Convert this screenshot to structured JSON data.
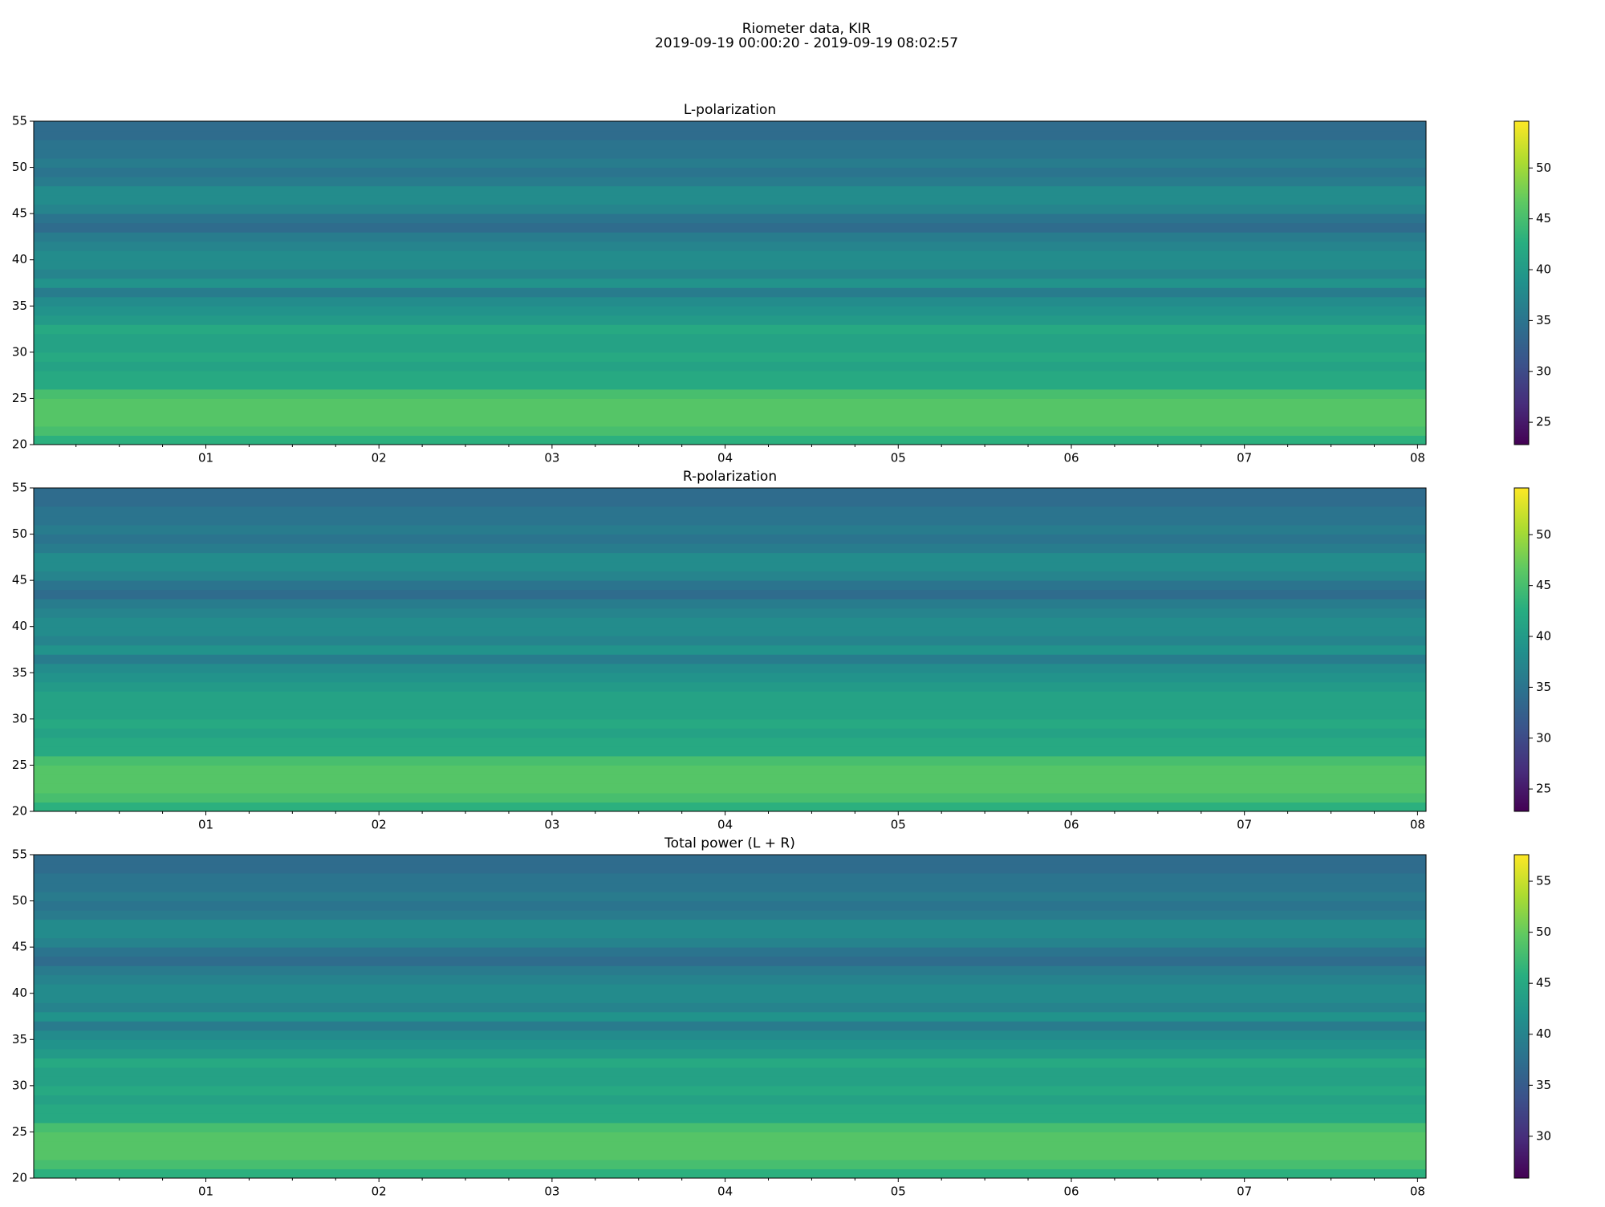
{
  "title_lines": [
    "Riometer data, KIR",
    "2019-09-19 00:00:20 - 2019-09-19 08:02:57"
  ],
  "chart_data": [
    {
      "type": "heatmap",
      "title": "L-polarization",
      "colormap": "viridis",
      "xlim": [
        0.0056,
        8.0492
      ],
      "xticks": [
        {
          "value": 1,
          "label": "01"
        },
        {
          "value": 2,
          "label": "02"
        },
        {
          "value": 3,
          "label": "03"
        },
        {
          "value": 4,
          "label": "04"
        },
        {
          "value": 5,
          "label": "05"
        },
        {
          "value": 6,
          "label": "06"
        },
        {
          "value": 7,
          "label": "07"
        },
        {
          "value": 8,
          "label": "08"
        }
      ],
      "xminorticks": [
        0.25,
        0.5,
        0.75,
        1.25,
        1.5,
        1.75,
        2.25,
        2.5,
        2.75,
        3.25,
        3.5,
        3.75,
        4.25,
        4.5,
        4.75,
        5.25,
        5.5,
        5.75,
        6.25,
        6.5,
        6.75,
        7.25,
        7.5,
        7.75
      ],
      "ylim": [
        20,
        55
      ],
      "yticks": [
        20,
        25,
        30,
        35,
        40,
        45,
        50,
        55
      ],
      "ybins": [
        20,
        21,
        22,
        23,
        24,
        25,
        26,
        27,
        28,
        29,
        30,
        31,
        32,
        33,
        34,
        35,
        36,
        37,
        38,
        39,
        40,
        41,
        42,
        43,
        44,
        45,
        46,
        47,
        48,
        49,
        50,
        51,
        52,
        53,
        54,
        55
      ],
      "values": [
        43,
        45,
        46,
        46,
        46,
        45,
        42,
        42,
        41,
        42,
        41,
        41,
        42,
        40,
        39,
        38,
        36,
        39,
        37,
        38,
        38,
        37,
        36,
        34,
        35,
        37,
        38,
        38,
        36,
        35,
        36,
        35,
        35,
        34,
        34
      ],
      "clim": [
        22.8,
        54.6
      ],
      "cbticks": [
        25,
        30,
        35,
        40,
        45,
        50
      ]
    },
    {
      "type": "heatmap",
      "title": "R-polarization",
      "colormap": "viridis",
      "xlim": [
        0.0056,
        8.0492
      ],
      "xticks": [
        {
          "value": 1,
          "label": "01"
        },
        {
          "value": 2,
          "label": "02"
        },
        {
          "value": 3,
          "label": "03"
        },
        {
          "value": 4,
          "label": "04"
        },
        {
          "value": 5,
          "label": "05"
        },
        {
          "value": 6,
          "label": "06"
        },
        {
          "value": 7,
          "label": "07"
        },
        {
          "value": 8,
          "label": "08"
        }
      ],
      "xminorticks": [
        0.25,
        0.5,
        0.75,
        1.25,
        1.5,
        1.75,
        2.25,
        2.5,
        2.75,
        3.25,
        3.5,
        3.75,
        4.25,
        4.5,
        4.75,
        5.25,
        5.5,
        5.75,
        6.25,
        6.5,
        6.75,
        7.25,
        7.5,
        7.75
      ],
      "ylim": [
        20,
        55
      ],
      "yticks": [
        20,
        25,
        30,
        35,
        40,
        45,
        50,
        55
      ],
      "ybins": [
        20,
        21,
        22,
        23,
        24,
        25,
        26,
        27,
        28,
        29,
        30,
        31,
        32,
        33,
        34,
        35,
        36,
        37,
        38,
        39,
        40,
        41,
        42,
        43,
        44,
        45,
        46,
        47,
        48,
        49,
        50,
        51,
        52,
        53,
        54,
        55
      ],
      "values": [
        43,
        45,
        46,
        46,
        46,
        45,
        42,
        42,
        41,
        42,
        41,
        41,
        41,
        40,
        39,
        38,
        36,
        39,
        37,
        38,
        38,
        37,
        36,
        34,
        35,
        37,
        38,
        38,
        36,
        35,
        36,
        35,
        35,
        34,
        34
      ],
      "clim": [
        22.8,
        54.6
      ],
      "cbticks": [
        25,
        30,
        35,
        40,
        45,
        50
      ]
    },
    {
      "type": "heatmap",
      "title": "Total power (L + R)",
      "colormap": "viridis",
      "xlim": [
        0.0056,
        8.0492
      ],
      "xticks": [
        {
          "value": 1,
          "label": "01"
        },
        {
          "value": 2,
          "label": "02"
        },
        {
          "value": 3,
          "label": "03"
        },
        {
          "value": 4,
          "label": "04"
        },
        {
          "value": 5,
          "label": "05"
        },
        {
          "value": 6,
          "label": "06"
        },
        {
          "value": 7,
          "label": "07"
        },
        {
          "value": 8,
          "label": "08"
        }
      ],
      "xminorticks": [
        0.25,
        0.5,
        0.75,
        1.25,
        1.5,
        1.75,
        2.25,
        2.5,
        2.75,
        3.25,
        3.5,
        3.75,
        4.25,
        4.5,
        4.75,
        5.25,
        5.5,
        5.75,
        6.25,
        6.5,
        6.75,
        7.25,
        7.5,
        7.75
      ],
      "ylim": [
        20,
        55
      ],
      "yticks": [
        20,
        25,
        30,
        35,
        40,
        45,
        50,
        55
      ],
      "ybins": [
        20,
        21,
        22,
        23,
        24,
        25,
        26,
        27,
        28,
        29,
        30,
        31,
        32,
        33,
        34,
        35,
        36,
        37,
        38,
        39,
        40,
        41,
        42,
        43,
        44,
        45,
        46,
        47,
        48,
        49,
        50,
        51,
        52,
        53,
        54,
        55
      ],
      "values": [
        46,
        48,
        49,
        49,
        49,
        48,
        45,
        45,
        44,
        45,
        44,
        44,
        45,
        43,
        42,
        41,
        39,
        42,
        40,
        41,
        41,
        40,
        39,
        37,
        38,
        40,
        41,
        41,
        39,
        38,
        39,
        38,
        38,
        37,
        37
      ],
      "clim": [
        25.9,
        57.6
      ],
      "cbticks": [
        30,
        35,
        40,
        45,
        50,
        55
      ]
    }
  ]
}
